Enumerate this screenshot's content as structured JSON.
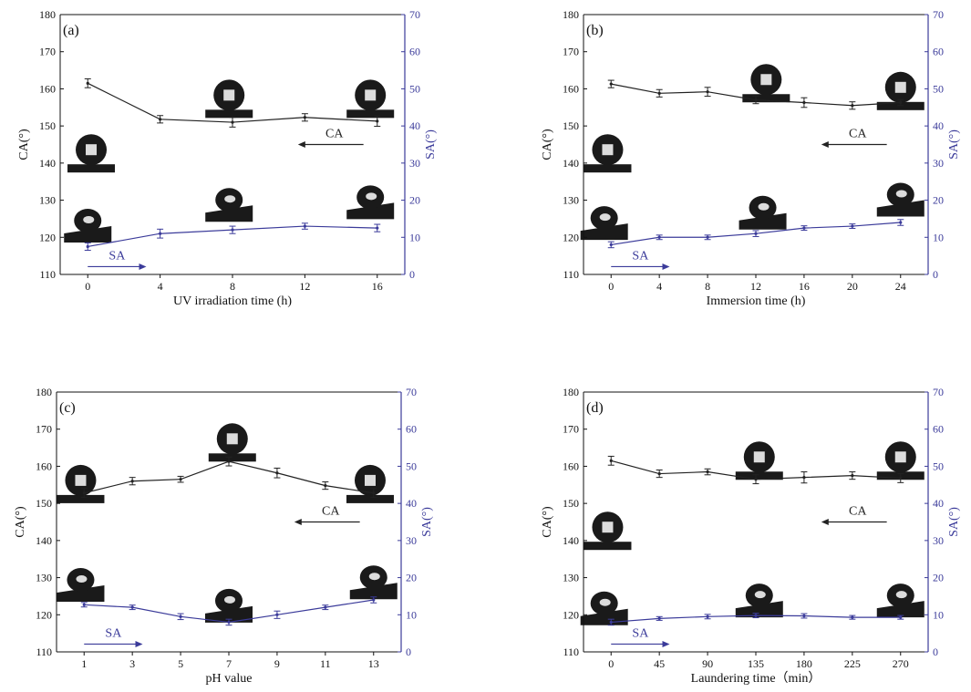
{
  "figure": {
    "colors": {
      "ca": "#222222",
      "sa": "#3b3b9a",
      "axis": "#111111",
      "droplet": "#1a1a1a"
    }
  },
  "chart_data": [
    {
      "type": "line",
      "panel_label": "(a)",
      "xlabel": "UV irradiation time (h)",
      "ylabel_left": "CA(°)",
      "ylabel_right": "SA(°)",
      "x": [
        0,
        4,
        8,
        12,
        16
      ],
      "x_tick_labels": [
        "0",
        "4",
        "8",
        "12",
        "16"
      ],
      "ylim_left": [
        110,
        180
      ],
      "yticks_left": [
        110,
        120,
        130,
        140,
        150,
        160,
        170,
        180
      ],
      "ylim_right": [
        0,
        70
      ],
      "yticks_right": [
        0,
        10,
        20,
        30,
        40,
        50,
        60,
        70
      ],
      "series": [
        {
          "name": "CA",
          "axis": "left",
          "values": [
            161.5,
            151.8,
            151.0,
            152.3,
            151.3
          ],
          "errors": [
            1.2,
            1.0,
            1.3,
            1.0,
            1.4
          ]
        },
        {
          "name": "SA",
          "axis": "right",
          "values": [
            7.5,
            11.0,
            12.0,
            13.0,
            12.5
          ],
          "errors": [
            1.0,
            1.2,
            1.0,
            0.8,
            1.0
          ]
        }
      ],
      "arrows": [
        {
          "label": "CA",
          "direction": "left"
        },
        {
          "label": "SA",
          "direction": "right"
        }
      ]
    },
    {
      "type": "line",
      "panel_label": "(b)",
      "xlabel": "Immersion time (h)",
      "ylabel_left": "CA(°)",
      "ylabel_right": "SA(°)",
      "x": [
        0,
        4,
        8,
        12,
        16,
        20,
        24
      ],
      "x_tick_labels": [
        "0",
        "4",
        "8",
        "12",
        "16",
        "20",
        "24"
      ],
      "ylim_left": [
        110,
        180
      ],
      "yticks_left": [
        110,
        120,
        130,
        140,
        150,
        160,
        170,
        180
      ],
      "ylim_right": [
        0,
        70
      ],
      "yticks_right": [
        0,
        10,
        20,
        30,
        40,
        50,
        60,
        70
      ],
      "series": [
        {
          "name": "CA",
          "axis": "left",
          "values": [
            161.3,
            158.8,
            159.2,
            157.0,
            156.3,
            155.5,
            156.3
          ],
          "errors": [
            1.0,
            1.0,
            1.2,
            1.0,
            1.3,
            1.0,
            0.8
          ]
        },
        {
          "name": "SA",
          "axis": "right",
          "values": [
            8.0,
            10.0,
            10.0,
            11.0,
            12.5,
            13.0,
            14.0
          ],
          "errors": [
            0.8,
            0.6,
            0.6,
            0.8,
            0.6,
            0.6,
            0.8
          ]
        }
      ],
      "arrows": [
        {
          "label": "CA",
          "direction": "left"
        },
        {
          "label": "SA",
          "direction": "right"
        }
      ]
    },
    {
      "type": "line",
      "panel_label": "(c)",
      "xlabel": "pH value",
      "ylabel_left": "CA(°)",
      "ylabel_right": "SA(°)",
      "x": [
        1,
        3,
        5,
        7,
        9,
        11,
        13
      ],
      "x_tick_labels": [
        "1",
        "3",
        "5",
        "7",
        "9",
        "11",
        "13"
      ],
      "ylim_left": [
        110,
        180
      ],
      "yticks_left": [
        110,
        120,
        130,
        140,
        150,
        160,
        170,
        180
      ],
      "ylim_right": [
        0,
        70
      ],
      "yticks_right": [
        0,
        10,
        20,
        30,
        40,
        50,
        60,
        70
      ],
      "series": [
        {
          "name": "CA",
          "axis": "left",
          "values": [
            152.8,
            156.0,
            156.5,
            161.3,
            158.2,
            154.8,
            152.8
          ],
          "errors": [
            1.2,
            1.0,
            0.8,
            1.2,
            1.3,
            1.0,
            1.2
          ]
        },
        {
          "name": "SA",
          "axis": "right",
          "values": [
            12.7,
            12.0,
            9.5,
            8.0,
            10.0,
            12.0,
            14.0
          ],
          "errors": [
            0.6,
            0.6,
            0.8,
            0.8,
            1.0,
            0.6,
            0.8
          ]
        }
      ],
      "arrows": [
        {
          "label": "CA",
          "direction": "left"
        },
        {
          "label": "SA",
          "direction": "right"
        }
      ]
    },
    {
      "type": "line",
      "panel_label": "(d)",
      "xlabel": "Laundering time（min）",
      "ylabel_left": "CA(°)",
      "ylabel_right": "SA(°)",
      "x": [
        0,
        45,
        90,
        135,
        180,
        225,
        270
      ],
      "x_tick_labels": [
        "0",
        "45",
        "90",
        "135",
        "180",
        "225",
        "270"
      ],
      "ylim_left": [
        110,
        180
      ],
      "yticks_left": [
        110,
        120,
        130,
        140,
        150,
        160,
        170,
        180
      ],
      "ylim_right": [
        0,
        70
      ],
      "yticks_right": [
        0,
        10,
        20,
        30,
        40,
        50,
        60,
        70
      ],
      "series": [
        {
          "name": "CA",
          "axis": "left",
          "values": [
            161.5,
            158.0,
            158.5,
            156.5,
            157.0,
            157.5,
            156.8
          ],
          "errors": [
            1.2,
            1.0,
            0.8,
            1.2,
            1.5,
            1.0,
            1.2
          ]
        },
        {
          "name": "SA",
          "axis": "right",
          "values": [
            8.0,
            9.0,
            9.5,
            9.8,
            9.7,
            9.3,
            9.3
          ],
          "errors": [
            0.8,
            0.5,
            0.6,
            0.6,
            0.6,
            0.5,
            0.5
          ]
        }
      ],
      "arrows": [
        {
          "label": "CA",
          "direction": "left"
        },
        {
          "label": "SA",
          "direction": "right"
        }
      ]
    }
  ]
}
